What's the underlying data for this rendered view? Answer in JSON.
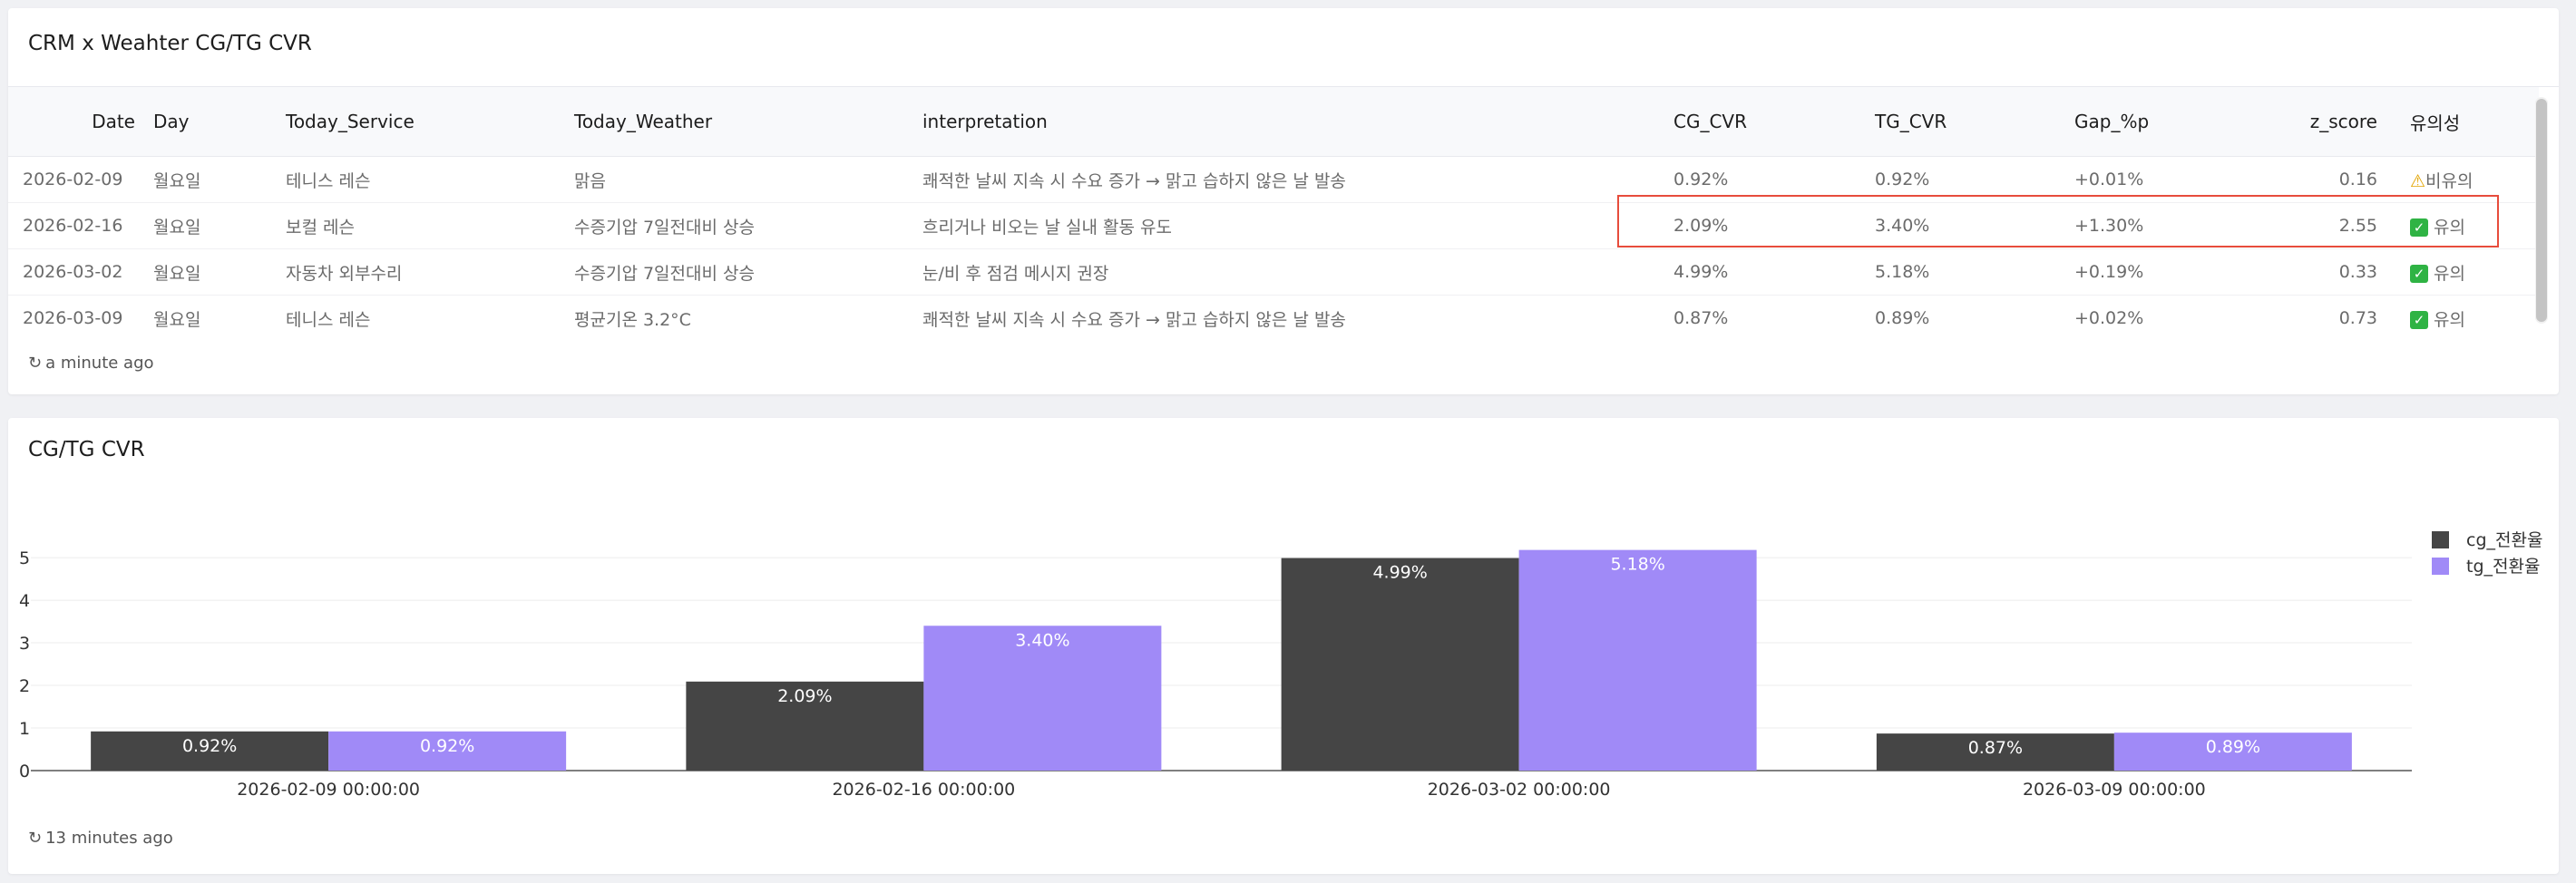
{
  "table_panel": {
    "title": "CRM x Weahter CG/TG CVR",
    "columns": [
      "Date",
      "Day",
      "Today_Service",
      "Today_Weather",
      "interpretation",
      "CG_CVR",
      "TG_CVR",
      "Gap_%p",
      "z_score",
      "유의성"
    ],
    "rows": [
      {
        "date": "2026-02-09",
        "day": "월요일",
        "service": "테니스 레슨",
        "weather": "맑음",
        "interpretation": "쾌적한 날씨 지속 시 수요 증가 → 맑고 습하지 않은 날 발송",
        "cg_cvr": "0.92%",
        "tg_cvr": "0.92%",
        "gap": "+0.01%",
        "z": "0.16",
        "sig_icon": "warning-icon",
        "sig": "비유의"
      },
      {
        "date": "2026-02-16",
        "day": "월요일",
        "service": "보컬 레슨",
        "weather": "수증기압 7일전대비 상승",
        "interpretation": "흐리거나 비오는 날 실내 활동 유도",
        "cg_cvr": "2.09%",
        "tg_cvr": "3.40%",
        "gap": "+1.30%",
        "z": "2.55",
        "sig_icon": "check-icon",
        "sig": "유의"
      },
      {
        "date": "2026-03-02",
        "day": "월요일",
        "service": "자동차 외부수리",
        "weather": "수증기압 7일전대비 상승",
        "interpretation": "눈/비 후 점검 메시지 권장",
        "cg_cvr": "4.99%",
        "tg_cvr": "5.18%",
        "gap": "+0.19%",
        "z": "0.33",
        "sig_icon": "check-icon",
        "sig": "유의"
      },
      {
        "date": "2026-03-09",
        "day": "월요일",
        "service": "테니스 레슨",
        "weather": "평균기온 3.2°C",
        "interpretation": "쾌적한 날씨 지속 시 수요 증가 → 맑고 습하지 않은 날 발송",
        "cg_cvr": "0.87%",
        "tg_cvr": "0.89%",
        "gap": "+0.02%",
        "z": "0.73",
        "sig_icon": "check-icon",
        "sig": "유의"
      }
    ],
    "refresh": "a minute ago"
  },
  "chart_panel": {
    "title": "CG/TG CVR",
    "refresh": "13 minutes ago"
  },
  "chart_data": {
    "type": "bar",
    "categories": [
      "2026-02-09 00:00:00",
      "2026-02-16 00:00:00",
      "2026-03-02 00:00:00",
      "2026-03-09 00:00:00"
    ],
    "series": [
      {
        "name": "cg_전환율",
        "values": [
          0.92,
          2.09,
          4.99,
          0.87
        ],
        "labels": [
          "0.92%",
          "2.09%",
          "4.99%",
          "0.87%"
        ],
        "color": "#454545"
      },
      {
        "name": "tg_전환율",
        "values": [
          0.92,
          3.4,
          5.18,
          0.89
        ],
        "labels": [
          "0.92%",
          "3.40%",
          "5.18%",
          "0.89%"
        ],
        "color": "#a08af7"
      }
    ],
    "yticks": [
      0,
      1,
      2,
      3,
      4,
      5
    ],
    "ylim": [
      0,
      5.3
    ],
    "grid": true,
    "legend": "top-right"
  }
}
